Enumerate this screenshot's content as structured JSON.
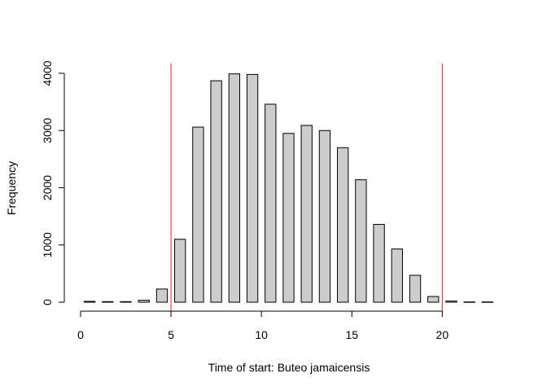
{
  "chart_data": {
    "type": "bar",
    "title": "",
    "xlabel": "Time of start: Buteo jamaicensis",
    "ylabel": "Frequency",
    "x": [
      0.5,
      1.5,
      2.5,
      3.5,
      4.5,
      5.5,
      6.5,
      7.5,
      8.5,
      9.5,
      10.5,
      11.5,
      12.5,
      13.5,
      14.5,
      15.5,
      16.5,
      17.5,
      18.5,
      19.5,
      20.5,
      21.5,
      22.5
    ],
    "values": [
      15,
      10,
      10,
      35,
      230,
      1100,
      3060,
      3870,
      3990,
      3980,
      3460,
      2950,
      3090,
      3000,
      2700,
      2140,
      1360,
      930,
      470,
      100,
      20,
      5,
      5
    ],
    "bar_width": 0.6,
    "bar_color": "#cccccc",
    "xlim": [
      0,
      23
    ],
    "ylim": [
      0,
      4000
    ],
    "x_ticks": [
      0,
      5,
      10,
      15,
      20
    ],
    "y_ticks": [
      0,
      1000,
      2000,
      3000,
      4000
    ],
    "reference_lines": [
      5,
      20
    ],
    "reference_line_color": "#e8192c",
    "grid": false
  }
}
